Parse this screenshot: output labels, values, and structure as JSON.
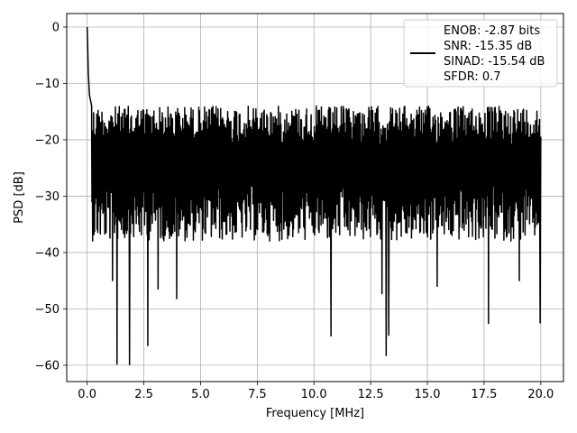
{
  "chart_data": {
    "type": "line",
    "title": "",
    "xlabel": "Frequency [MHz]",
    "ylabel": "PSD [dB]",
    "xlim": [
      -0.9,
      21.0
    ],
    "ylim": [
      -62.9,
      2.4
    ],
    "xticks": [
      0.0,
      2.5,
      5.0,
      7.5,
      10.0,
      12.5,
      15.0,
      17.5,
      20.0
    ],
    "xtick_labels": [
      "0.0",
      "2.5",
      "5.0",
      "7.5",
      "10.0",
      "12.5",
      "15.0",
      "17.5",
      "20.0"
    ],
    "yticks": [
      0,
      -10,
      -20,
      -30,
      -40,
      -50,
      -60
    ],
    "ytick_labels": [
      "0",
      "−10",
      "−20",
      "−30",
      "−40",
      "−50",
      "−60"
    ],
    "grid": true,
    "legend_position": "top-right",
    "legend_lines": [
      "ENOB: -2.87 bits",
      "SNR: -15.35 dB",
      "SINAD: -15.54 dB",
      "SFDR: 0.7"
    ],
    "series": [
      {
        "color": "#000000",
        "x_range": [
          0.0,
          20.0
        ],
        "noise_floor_db": -23,
        "noise_upper_db": -14,
        "noise_lower_db": -36,
        "peak_points": [
          [
            0.0,
            0.0
          ],
          [
            0.02,
            -2.5
          ],
          [
            0.05,
            -8
          ],
          [
            0.1,
            -12
          ],
          [
            0.2,
            -14
          ]
        ],
        "deep_nulls": [
          [
            1.32,
            -59.8
          ],
          [
            1.87,
            -59.9
          ],
          [
            2.68,
            -56.5
          ],
          [
            13.18,
            -58.3
          ],
          [
            1.12,
            -45
          ],
          [
            3.13,
            -46.5
          ],
          [
            3.95,
            -48.2
          ],
          [
            10.75,
            -54.8
          ],
          [
            13.3,
            -54.7
          ],
          [
            17.7,
            -52.6
          ],
          [
            19.97,
            -52.5
          ],
          [
            13.0,
            -47.3
          ],
          [
            15.43,
            -46
          ],
          [
            19.05,
            -45
          ]
        ]
      }
    ]
  }
}
